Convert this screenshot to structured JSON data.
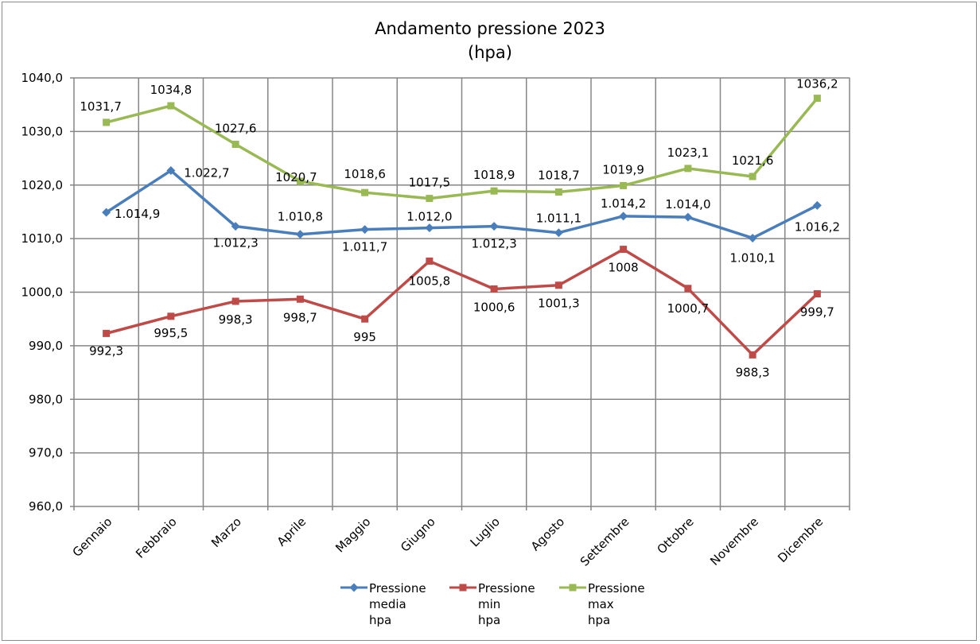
{
  "chart_data": {
    "type": "line",
    "title": "Andamento pressione 2023",
    "subtitle": "(hpa)",
    "categories": [
      "Gennaio",
      "Febbraio",
      "Marzo",
      "Aprile",
      "Maggio",
      "Giugno",
      "Luglio",
      "Agosto",
      "Settembre",
      "Ottobre",
      "Novembre",
      "Dicembre"
    ],
    "ylim": [
      960,
      1040
    ],
    "yticks": [
      960,
      970,
      980,
      990,
      1000,
      1010,
      1020,
      1030,
      1040
    ],
    "ytick_labels": [
      "960,0",
      "970,0",
      "980,0",
      "990,0",
      "1000,0",
      "1010,0",
      "1020,0",
      "1030,0",
      "1040,0"
    ],
    "grid": true,
    "legend_position": "bottom",
    "series": [
      {
        "name": "Pressione media hpa",
        "legend_lines": [
          "Pressione",
          "media",
          "hpa"
        ],
        "color": "#4a7ebb",
        "marker": "diamond",
        "values": [
          1014.9,
          1022.7,
          1012.3,
          1010.8,
          1011.7,
          1012.0,
          1012.3,
          1011.1,
          1014.2,
          1014.0,
          1010.1,
          1016.2
        ],
        "labels": [
          "1.014,9",
          "1.022,7",
          "1.012,3",
          "1.010,8",
          "1.011,7",
          "1.012,0",
          "1.012,3",
          "1.011,1",
          "1.014,2",
          "1.014,0",
          "1.010,1",
          "1.016,2"
        ]
      },
      {
        "name": "Pressione min hpa",
        "legend_lines": [
          "Pressione",
          "min",
          "hpa"
        ],
        "color": "#be4b48",
        "marker": "square",
        "values": [
          992.3,
          995.5,
          998.3,
          998.7,
          995,
          1005.8,
          1000.6,
          1001.3,
          1008,
          1000.7,
          988.3,
          999.7
        ],
        "labels": [
          "992,3",
          "995,5",
          "998,3",
          "998,7",
          "995",
          "1005,8",
          "1000,6",
          "1001,3",
          "1008",
          "1000,7",
          "988,3",
          "999,7"
        ]
      },
      {
        "name": "Pressione max hpa",
        "legend_lines": [
          "Pressione",
          "max",
          "hpa"
        ],
        "color": "#98b954",
        "marker": "square",
        "values": [
          1031.7,
          1034.8,
          1027.6,
          1020.7,
          1018.6,
          1017.5,
          1018.9,
          1018.7,
          1019.9,
          1023.1,
          1021.6,
          1036.2
        ],
        "labels": [
          "1031,7",
          "1034,8",
          "1027,6",
          "1020,7",
          "1018,6",
          "1017,5",
          "1018,9",
          "1018,7",
          "1019,9",
          "1023,1",
          "1021,6",
          "1036,2"
        ]
      }
    ]
  }
}
